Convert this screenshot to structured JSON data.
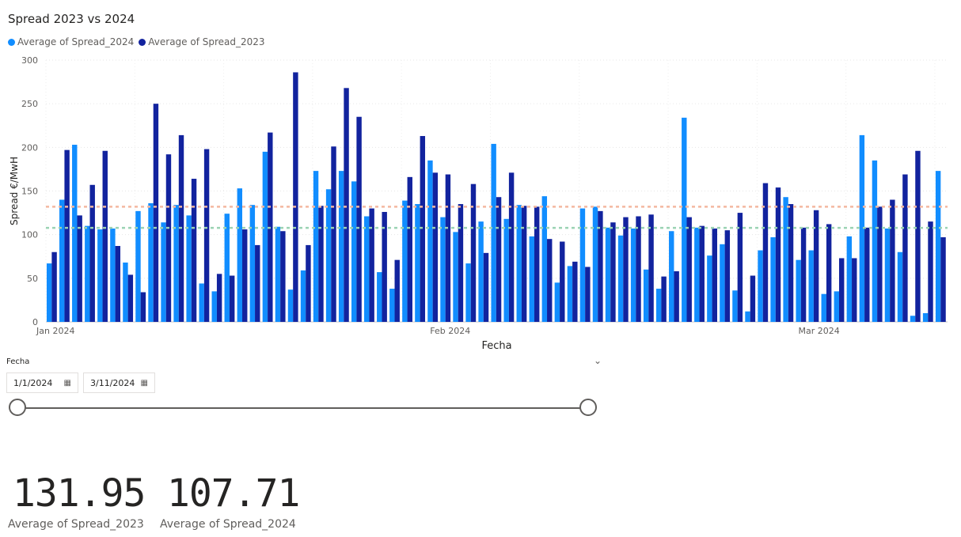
{
  "title": "Spread 2023 vs 2024",
  "colors": {
    "s2024": "#118DFF",
    "s2023": "#12239E",
    "ref2023": "#F4B8A0",
    "ref2024": "#9BD3B3"
  },
  "chart_data": {
    "type": "bar",
    "xlabel": "Fecha",
    "ylabel": "Spread €/MwH",
    "ylim": [
      0,
      300
    ],
    "yticks": [
      0,
      50,
      100,
      150,
      200,
      250,
      300
    ],
    "xticks": [
      {
        "label": "Jan 2024",
        "day": 1
      },
      {
        "label": "Feb 2024",
        "day": 32
      },
      {
        "label": "Mar 2024",
        "day": 61
      }
    ],
    "grid": true,
    "legend_position": "top-left",
    "reference_lines": [
      {
        "series": "Average of Spread_2023",
        "value": 131.95
      },
      {
        "series": "Average of Spread_2024",
        "value": 107.71
      }
    ],
    "days": [
      1,
      2,
      3,
      4,
      5,
      6,
      7,
      8,
      9,
      10,
      11,
      12,
      13,
      14,
      15,
      16,
      17,
      18,
      19,
      20,
      21,
      22,
      23,
      24,
      25,
      26,
      27,
      28,
      29,
      30,
      31,
      32,
      33,
      34,
      35,
      36,
      37,
      38,
      39,
      40,
      41,
      42,
      43,
      44,
      45,
      46,
      47,
      48,
      49,
      50,
      51,
      52,
      53,
      54,
      55,
      56,
      57,
      58,
      59,
      60,
      61,
      62,
      63,
      64,
      65,
      66,
      67,
      68,
      69,
      70,
      71
    ],
    "series": [
      {
        "name": "Average of Spread_2024",
        "values": [
          67,
          140,
          203,
          110,
          106,
          107,
          68,
          127,
          136,
          114,
          134,
          122,
          44,
          35,
          124,
          153,
          134,
          195,
          109,
          37,
          59,
          173,
          152,
          173,
          161,
          121,
          57,
          38,
          139,
          135,
          185,
          120,
          103,
          67,
          115,
          204,
          118,
          134,
          98,
          144,
          45,
          64,
          130,
          132,
          108,
          99,
          107,
          60,
          38,
          104,
          234,
          108,
          76,
          89,
          36,
          12,
          82,
          97,
          143,
          71,
          82,
          32,
          35,
          98,
          214,
          185,
          107,
          80,
          7,
          10,
          173
        ]
      },
      {
        "name": "Average of Spread_2023",
        "values": [
          80,
          197,
          122,
          157,
          196,
          87,
          54,
          34,
          250,
          192,
          214,
          164,
          198,
          55,
          53,
          106,
          88,
          217,
          104,
          286,
          88,
          133,
          201,
          268,
          235,
          130,
          126,
          71,
          166,
          213,
          171,
          169,
          135,
          158,
          79,
          143,
          171,
          133,
          132,
          95,
          92,
          69,
          63,
          127,
          114,
          120,
          121,
          123,
          52,
          58,
          120,
          110,
          107,
          105,
          125,
          53,
          159,
          154,
          135,
          108,
          128,
          112,
          73,
          73,
          108,
          132,
          140,
          169,
          196,
          115,
          97
        ]
      }
    ]
  },
  "slicer": {
    "title": "Fecha",
    "start": "1/1/2024",
    "end": "3/11/2024"
  },
  "kpis": [
    {
      "value": "131.95",
      "label": "Average of Spread_2023"
    },
    {
      "value": "107.71",
      "label": "Average of Spread_2024"
    }
  ]
}
